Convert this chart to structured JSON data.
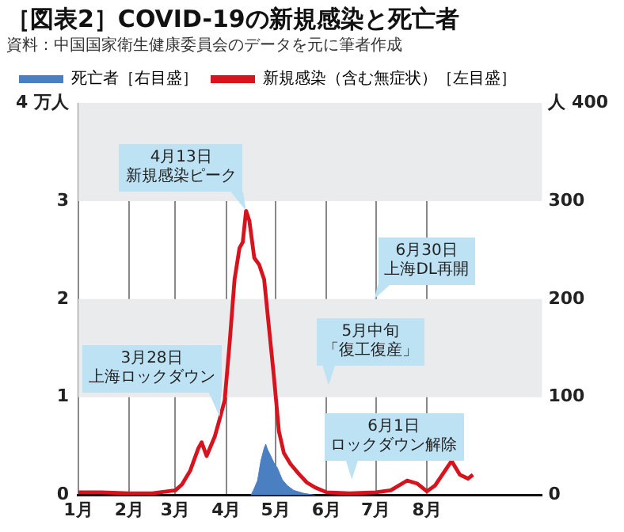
{
  "chart_data": {
    "type": "line",
    "title": "［図表2］COVID-19の新規感染と死亡者",
    "subtitle": "資料：中国国家衛生健康委員会のデータを元に筆者作成",
    "xlim": [
      "--01-01",
      "--10-10"
    ],
    "xticks": [
      {
        "value": "--01-01",
        "label": "1月"
      },
      {
        "value": "--02-01",
        "label": "2月"
      },
      {
        "value": "--03-01",
        "label": "3月"
      },
      {
        "value": "--04-01",
        "label": "4月"
      },
      {
        "value": "--05-01",
        "label": "5月"
      },
      {
        "value": "--06-01",
        "label": "6月"
      },
      {
        "value": "--07-01",
        "label": "7月"
      },
      {
        "value": "--08-01",
        "label": "8月"
      }
    ],
    "ylim": [
      0,
      4
    ],
    "yticks": [
      0,
      1,
      2,
      3,
      {
        "value": 4,
        "label": "4 万人"
      }
    ],
    "y2lim": [
      0,
      400
    ],
    "y2ticks": [
      0,
      100,
      200,
      300,
      {
        "value": 400,
        "label": "人 400"
      }
    ],
    "grid": "x",
    "legend": "top",
    "bands": [
      {
        "axis": "y",
        "from": 1,
        "to": 2,
        "color": "#e9ebed"
      },
      {
        "axis": "y",
        "from": 3,
        "to": 4,
        "color": "#e9ebed"
      }
    ],
    "series": [
      {
        "name": "死亡者［右目盛］",
        "type": "area",
        "axis": "y2",
        "color": "#4a7fc1",
        "x": [
          "--04-16",
          "--04-18",
          "--04-20",
          "--04-22",
          "--04-24",
          "--04-25",
          "--04-26",
          "--04-28",
          "--04-30",
          "--05-02",
          "--05-05",
          "--05-08",
          "--05-12",
          "--05-18",
          "--05-25"
        ],
        "values": [
          0,
          7,
          15,
          35,
          48,
          52,
          47,
          40,
          33,
          28,
          16,
          10,
          5,
          2,
          0
        ]
      },
      {
        "name": "新規感染（含む無症状）［左目盛］",
        "color": "#d7141e",
        "x": [
          "--01-01",
          "--01-15",
          "--02-01",
          "--02-15",
          "--03-01",
          "--03-05",
          "--03-10",
          "--03-15",
          "--03-17",
          "--03-20",
          "--03-25",
          "--03-28",
          "--03-31",
          "--04-03",
          "--04-06",
          "--04-09",
          "--04-11",
          "--04-13",
          "--04-15",
          "--04-18",
          "--04-21",
          "--04-24",
          "--04-27",
          "--04-30",
          "--05-03",
          "--05-06",
          "--05-10",
          "--05-15",
          "--05-20",
          "--05-25",
          "--06-01",
          "--06-15",
          "--07-01",
          "--07-10",
          "--07-20",
          "--07-26",
          "--08-01",
          "--08-06",
          "--08-12",
          "--08-16",
          "--08-21",
          "--08-26",
          "--08-29"
        ],
        "values": [
          0.03,
          0.03,
          0.02,
          0.02,
          0.05,
          0.11,
          0.25,
          0.48,
          0.54,
          0.4,
          0.6,
          0.78,
          0.97,
          1.55,
          2.2,
          2.52,
          2.58,
          2.9,
          2.8,
          2.42,
          2.35,
          2.2,
          1.7,
          1.2,
          0.65,
          0.43,
          0.32,
          0.22,
          0.13,
          0.08,
          0.03,
          0.02,
          0.03,
          0.05,
          0.15,
          0.12,
          0.04,
          0.1,
          0.25,
          0.35,
          0.21,
          0.17,
          0.21
        ]
      }
    ],
    "annotations": [
      {
        "text": "3月28日上海ロックダウン",
        "x": "--03-28",
        "y": 0.8
      },
      {
        "text": "4月13日新規感染ピーク",
        "x": "--04-13",
        "y": 2.9
      },
      "5月中旬「復工復産」",
      "6月1日ロックダウン解除",
      {
        "text": "6月30日上海DL再開",
        "x": "--06-30",
        "y": 2
      }
    ]
  }
}
